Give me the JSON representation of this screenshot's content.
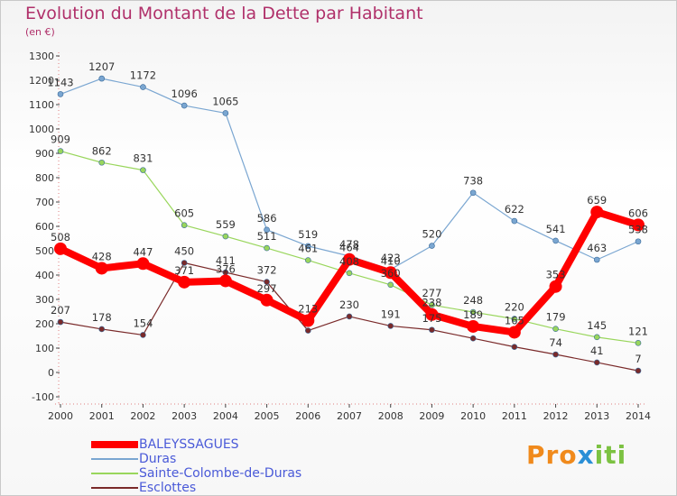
{
  "title": "Evolution du Montant de la Dette par Habitant",
  "unit": "(en €)",
  "logo": {
    "text": "Proxiti",
    "part1": "Pro",
    "part2": "x",
    "part3": "iti"
  },
  "chart_data": {
    "type": "line",
    "x": [
      "2000",
      "2001",
      "2002",
      "2003",
      "2004",
      "2005",
      "2006",
      "2007",
      "2008",
      "2009",
      "2010",
      "2011",
      "2012",
      "2013",
      "2014"
    ],
    "y_ticks": [
      -100,
      0,
      100,
      200,
      300,
      400,
      500,
      600,
      700,
      800,
      900,
      1000,
      1100,
      1200,
      1300
    ],
    "ylim": [
      -100,
      1300
    ],
    "grid": false,
    "legend_position": "bottom-left",
    "series": [
      {
        "name": "BALEYSSAGUES",
        "color": "#ff0000",
        "stroke": 8,
        "marker": 7,
        "values": [
          508,
          428,
          447,
          371,
          376,
          297,
          213,
          464,
          410,
          238,
          189,
          165,
          353,
          659,
          606
        ],
        "labels": [
          "508",
          "428",
          "447",
          "371",
          "376",
          "297",
          "213",
          "464",
          "410",
          "238",
          "189",
          "165",
          "353",
          "659",
          "606"
        ]
      },
      {
        "name": "Duras",
        "color": "#7aa6d1",
        "stroke": 1.2,
        "marker": 3,
        "values": [
          1143,
          1207,
          1172,
          1096,
          1065,
          586,
          519,
          478,
          423,
          520,
          738,
          622,
          541,
          463,
          538
        ],
        "labels": [
          "1143",
          "1207",
          "1172",
          "1096",
          "1065",
          "586",
          "519",
          "478",
          "423",
          "520",
          "738",
          "622",
          "541",
          "463",
          "538"
        ]
      },
      {
        "name": "Sainte-Colombe-de-Duras",
        "color": "#99d65c",
        "stroke": 1.2,
        "marker": 3,
        "values": [
          909,
          862,
          831,
          605,
          559,
          511,
          461,
          408,
          360,
          277,
          248,
          220,
          179,
          145,
          121
        ],
        "labels": [
          "909",
          "862",
          "831",
          "605",
          "559",
          "511",
          "461",
          "408",
          "360",
          "277",
          "248",
          "220",
          "179",
          "145",
          "121"
        ]
      },
      {
        "name": "Esclottes",
        "color": "#7a2a2a",
        "stroke": 1.2,
        "marker": 3,
        "values": [
          207,
          178,
          154,
          450,
          411,
          372,
          172,
          230,
          191,
          175,
          140,
          105,
          74,
          41,
          7
        ],
        "labels": [
          "207",
          "178",
          "154",
          "450",
          "411",
          "372",
          "",
          "230",
          "191",
          "175",
          "",
          "",
          "74",
          "41",
          "7"
        ]
      }
    ]
  }
}
